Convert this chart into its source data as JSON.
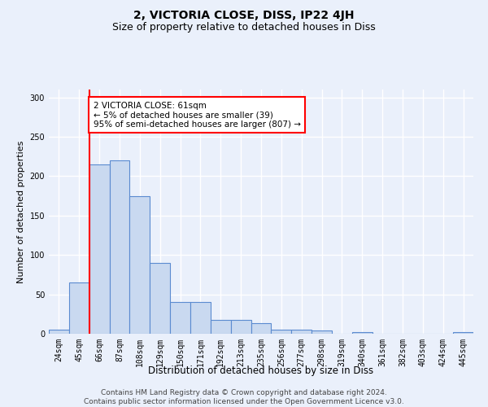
{
  "title": "2, VICTORIA CLOSE, DISS, IP22 4JH",
  "subtitle": "Size of property relative to detached houses in Diss",
  "xlabel": "Distribution of detached houses by size in Diss",
  "ylabel": "Number of detached properties",
  "categories": [
    "24sqm",
    "45sqm",
    "66sqm",
    "87sqm",
    "108sqm",
    "129sqm",
    "150sqm",
    "171sqm",
    "192sqm",
    "213sqm",
    "235sqm",
    "256sqm",
    "277sqm",
    "298sqm",
    "319sqm",
    "340sqm",
    "361sqm",
    "382sqm",
    "403sqm",
    "424sqm",
    "445sqm"
  ],
  "values": [
    5,
    65,
    215,
    220,
    175,
    90,
    40,
    40,
    18,
    18,
    13,
    5,
    5,
    4,
    0,
    2,
    0,
    0,
    0,
    0,
    2
  ],
  "bar_color": "#c9d9f0",
  "bar_edge_color": "#5b8bd0",
  "red_line_x": 1.5,
  "annotation_text": "2 VICTORIA CLOSE: 61sqm\n← 5% of detached houses are smaller (39)\n95% of semi-detached houses are larger (807) →",
  "annotation_box_color": "white",
  "annotation_box_edge_color": "red",
  "red_line_color": "red",
  "ylim": [
    0,
    310
  ],
  "yticks": [
    0,
    50,
    100,
    150,
    200,
    250,
    300
  ],
  "footer_line1": "Contains HM Land Registry data © Crown copyright and database right 2024.",
  "footer_line2": "Contains public sector information licensed under the Open Government Licence v3.0.",
  "background_color": "#eaf0fb",
  "grid_color": "white",
  "title_fontsize": 10,
  "subtitle_fontsize": 9,
  "xlabel_fontsize": 8.5,
  "ylabel_fontsize": 8,
  "tick_fontsize": 7,
  "footer_fontsize": 6.5,
  "annotation_fontsize": 7.5
}
